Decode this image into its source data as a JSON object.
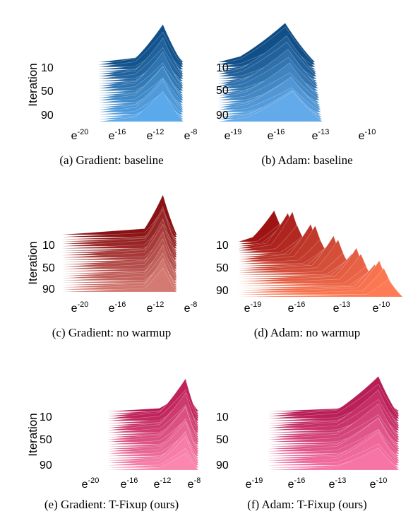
{
  "chart_data": [
    {
      "type": "area",
      "caption": "(a) Gradient: baseline",
      "ylabel": "Iteration",
      "yticks": [
        "10",
        "50",
        "90"
      ],
      "xticks": [
        {
          "base": "e",
          "exp": "-20"
        },
        {
          "base": "e",
          "exp": "-16"
        },
        {
          "base": "e",
          "exp": "-12"
        },
        {
          "base": "e",
          "exp": "-8"
        }
      ],
      "color_light": "#5aa9ea",
      "color_dark": "#0d4c86",
      "peak_x_exp": -11,
      "peak_x_exp_end": -11,
      "spread_left": 3,
      "spread_right": 2.2,
      "x_start": -18
    },
    {
      "type": "area",
      "caption": "(b) Adam: baseline",
      "ylabel": "",
      "yticks": [
        "10",
        "50",
        "90"
      ],
      "xticks": [
        {
          "base": "e",
          "exp": "-19"
        },
        {
          "base": "e",
          "exp": "-16"
        },
        {
          "base": "e",
          "exp": "-13"
        },
        {
          "base": "e",
          "exp": "-10"
        }
      ],
      "color_light": "#62aaea",
      "color_dark": "#0e4b84",
      "peak_x_exp": -15.5,
      "peak_x_exp_end": -15,
      "spread_left": 3,
      "spread_right": 2,
      "x_start": -20
    },
    {
      "type": "area",
      "caption": "(c) Gradient: no warmup",
      "ylabel": "Iteration",
      "yticks": [
        "10",
        "50",
        "90"
      ],
      "xticks": [
        {
          "base": "e",
          "exp": "-20"
        },
        {
          "base": "e",
          "exp": "-16"
        },
        {
          "base": "e",
          "exp": "-12"
        },
        {
          "base": "e",
          "exp": "-8"
        }
      ],
      "color_light": "#d47a72",
      "color_dark": "#8a1114",
      "peak_x_exp": -11,
      "peak_x_exp_end": -11,
      "spread_left": 2,
      "spread_right": 1.5,
      "x_start": -22
    },
    {
      "type": "area",
      "caption": "(d) Adam: no warmup",
      "ylabel": "",
      "yticks": [
        "10",
        "50",
        "90"
      ],
      "xticks": [
        {
          "base": "e",
          "exp": "-19"
        },
        {
          "base": "e",
          "exp": "-16"
        },
        {
          "base": "e",
          "exp": "-13"
        },
        {
          "base": "e",
          "exp": "-10"
        }
      ],
      "color_light": "#ff7b55",
      "color_dark": "#9e1414",
      "peak_x_exp": -17.5,
      "peak_x_exp_end": -9.5,
      "spread_left": 1.5,
      "spread_right": 1,
      "x_start": -20
    },
    {
      "type": "area",
      "caption": "(e) Gradient: T-Fixup (ours)",
      "ylabel": "Iteration",
      "yticks": [
        "10",
        "50",
        "90"
      ],
      "xticks": [
        {
          "base": "e",
          "exp": "-20"
        },
        {
          "base": "e",
          "exp": "-16"
        },
        {
          "base": "e",
          "exp": "-12"
        },
        {
          "base": "e",
          "exp": "-8"
        }
      ],
      "color_light": "#fb86b0",
      "color_dark": "#b8164f",
      "peak_x_exp": -9,
      "peak_x_exp_end": -9,
      "spread_left": 3,
      "spread_right": 1.5,
      "x_start": -18
    },
    {
      "type": "area",
      "caption": "(f) Adam: T-Fixup (ours)",
      "ylabel": "",
      "yticks": [
        "10",
        "50",
        "90"
      ],
      "xticks": [
        {
          "base": "e",
          "exp": "-19"
        },
        {
          "base": "e",
          "exp": "-16"
        },
        {
          "base": "e",
          "exp": "-13"
        },
        {
          "base": "e",
          "exp": "-10"
        }
      ],
      "color_light": "#f774a6",
      "color_dark": "#b3164e",
      "peak_x_exp": -10,
      "peak_x_exp_end": -10,
      "spread_left": 3,
      "spread_right": 1.5,
      "x_start": -18
    }
  ]
}
